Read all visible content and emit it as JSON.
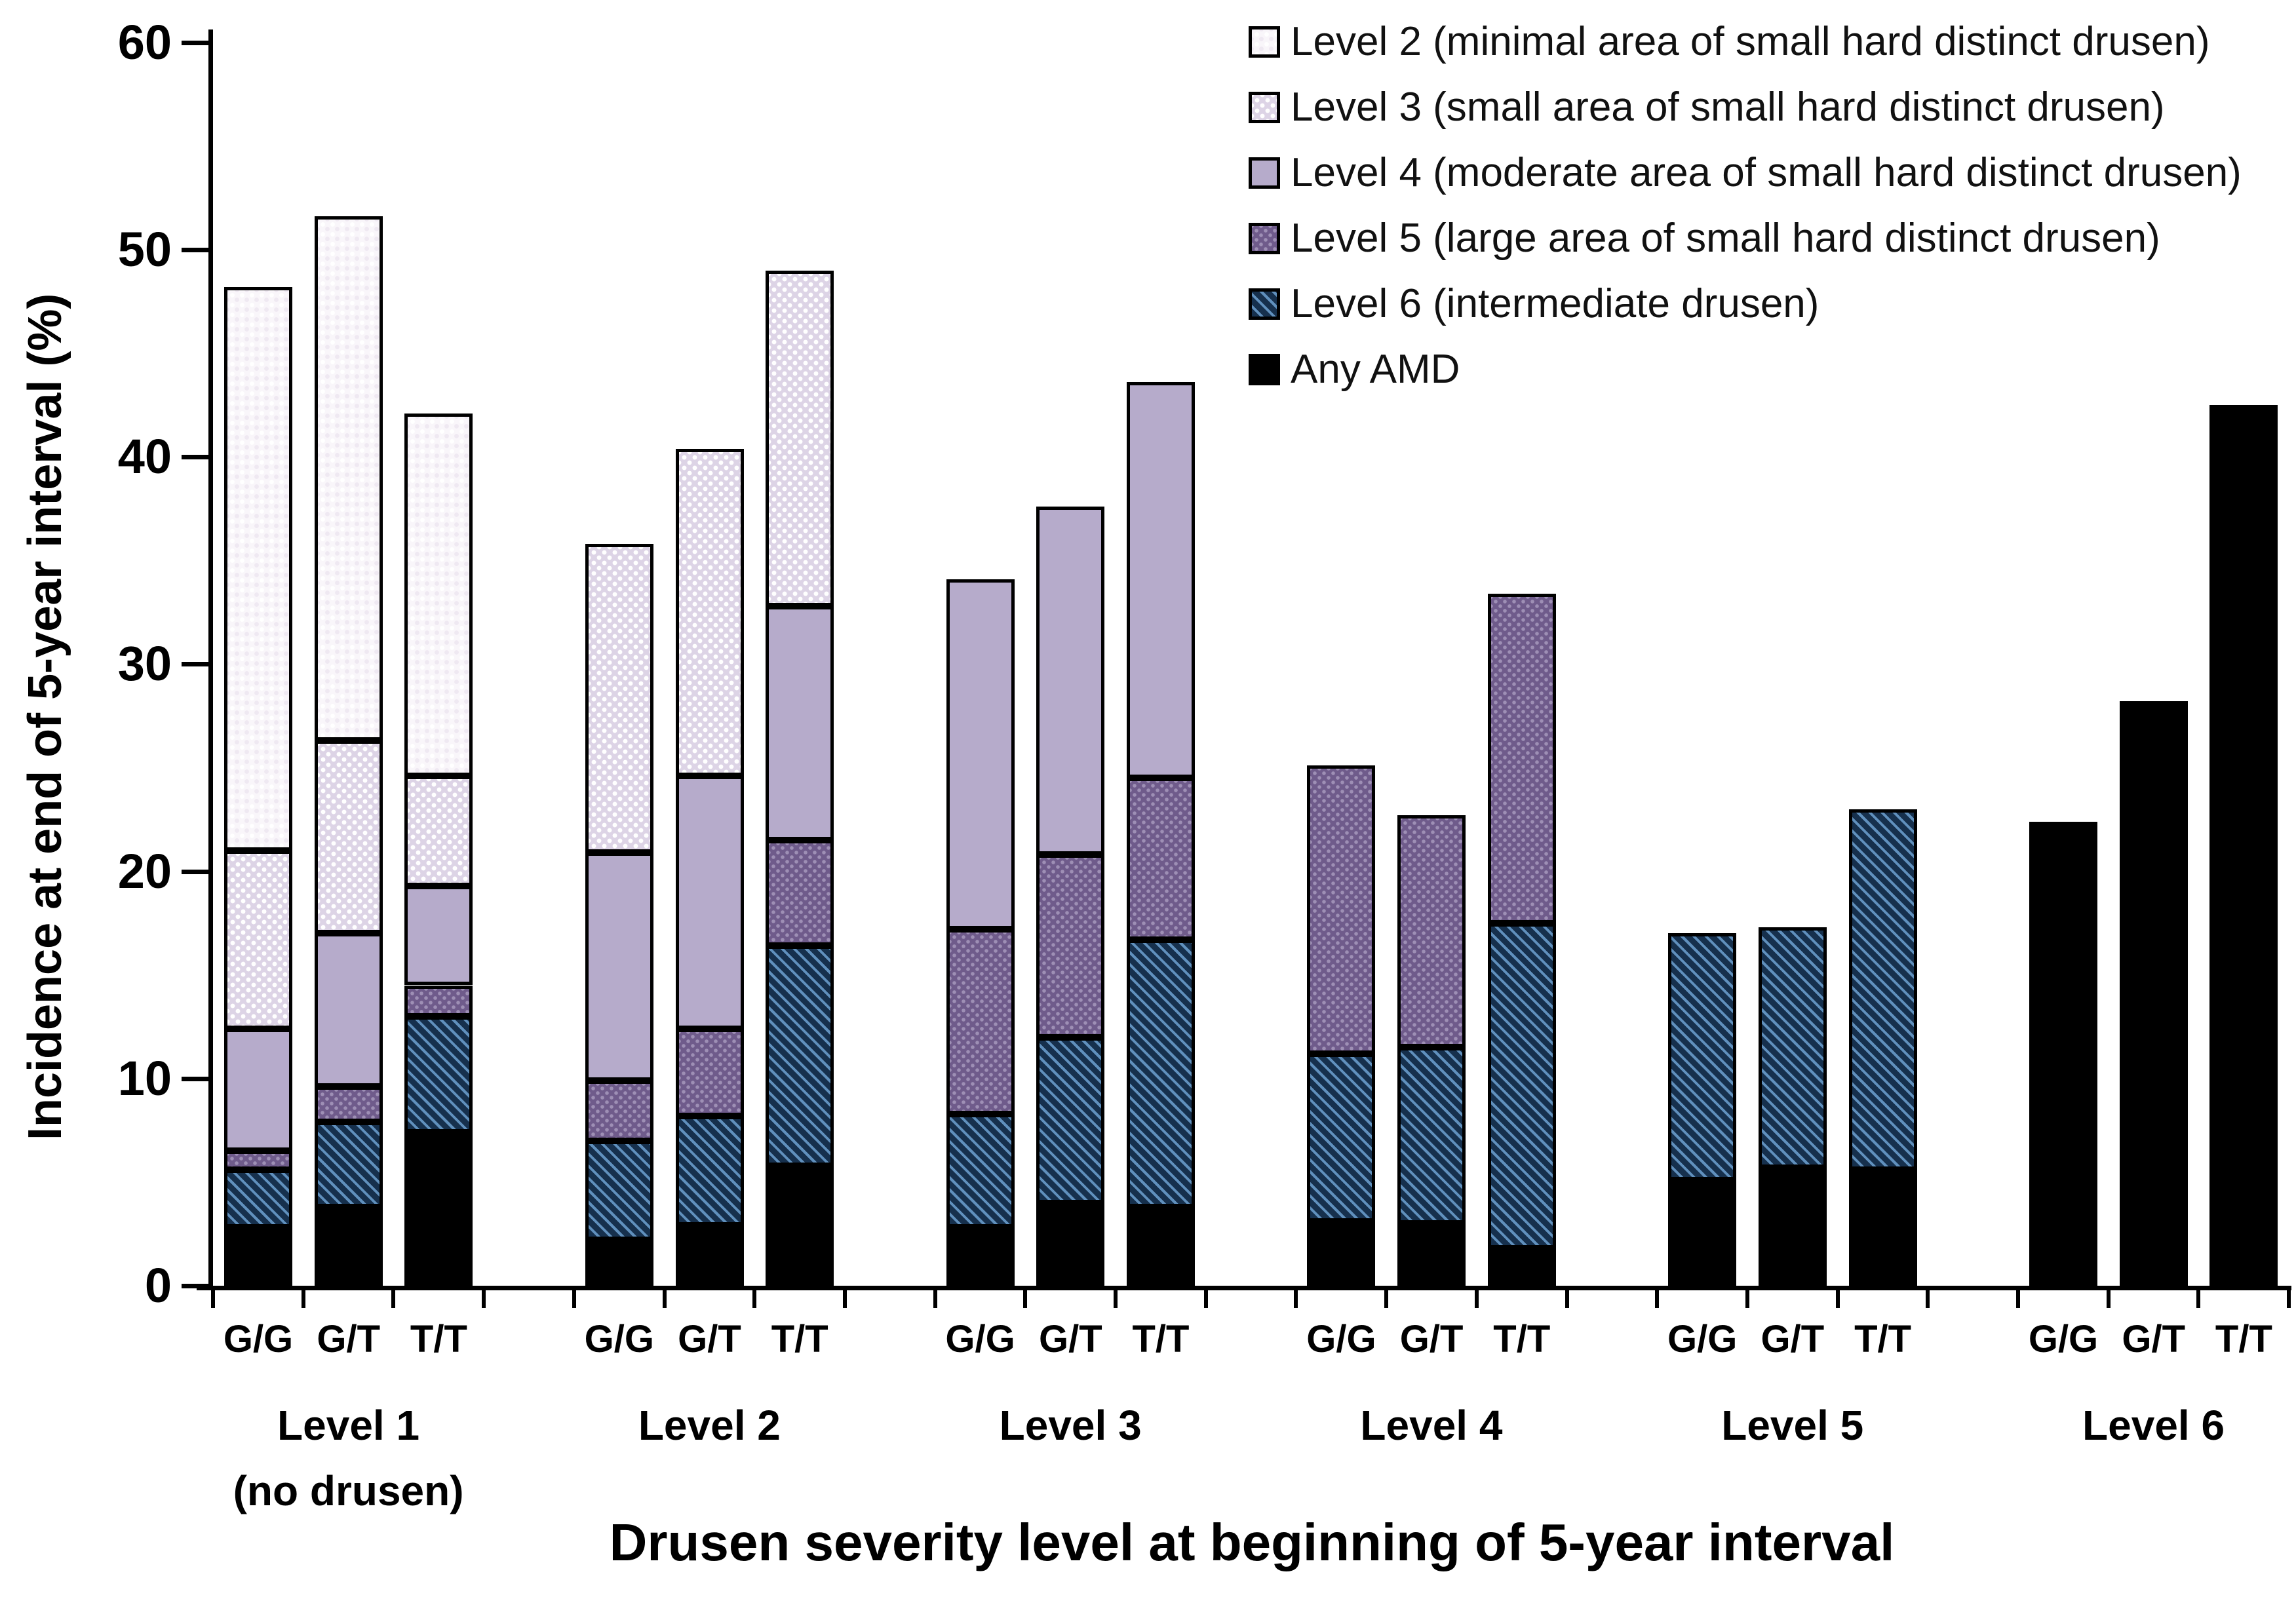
{
  "figure_title": "",
  "y_axis": {
    "title": "Incidence at end of 5-year interval (%)",
    "ticks": [
      0,
      10,
      20,
      30,
      40,
      50,
      60
    ],
    "min": 0,
    "max": 60
  },
  "x_axis": {
    "title": "Drusen severity level at beginning of 5-year interval",
    "group_labels": [
      "Level 1",
      "Level 2",
      "Level 3",
      "Level 4",
      "Level 5",
      "Level 6"
    ],
    "group_sublabels": [
      "(no drusen)",
      "",
      "",
      "",
      "",
      ""
    ],
    "genotype_labels": [
      "G/G",
      "G/T",
      "T/T"
    ]
  },
  "legend": {
    "items": [
      {
        "key": "l2",
        "label": "Level 2 (minimal area of small hard distinct drusen)"
      },
      {
        "key": "l3",
        "label": "Level 3 (small area of small hard distinct drusen)"
      },
      {
        "key": "l4",
        "label": "Level 4 (moderate area of small hard distinct drusen)"
      },
      {
        "key": "l5",
        "label": "Level 5 (large area of small hard distinct drusen)"
      },
      {
        "key": "l6",
        "label": "Level 6 (intermediate drusen)"
      },
      {
        "key": "amd",
        "label": "Any AMD"
      }
    ]
  },
  "colors": {
    "black": "#000000",
    "level6_base": "#16304d",
    "level6_stripe": "#6090bd",
    "level5_base": "#6f5b8b",
    "level5_dot": "#9e8fb5",
    "level4": "#b6abcb",
    "level3_base": "#ddd4e6",
    "level3_dot": "#ffffff",
    "level2_base": "#f9f6fa"
  },
  "chart_data": {
    "type": "bar",
    "stacked": true,
    "grid": false,
    "legend_position": "top-right",
    "ylim": [
      0,
      60
    ],
    "ylabel": "Incidence at end of 5-year interval (%)",
    "xlabel": "Drusen severity level at beginning of 5-year interval",
    "categories": [
      "Level 1 (no drusen)",
      "Level 2",
      "Level 3",
      "Level 4",
      "Level 5",
      "Level 6"
    ],
    "genotypes": [
      "G/G",
      "G/T",
      "T/T"
    ],
    "series": [
      {
        "name": "Any AMD",
        "key": "amd",
        "values": [
          [
            2.8,
            3.8,
            7.4
          ],
          [
            2.2,
            2.9,
            5.8
          ],
          [
            2.8,
            4.0,
            3.8
          ],
          [
            3.1,
            3.0,
            1.8
          ],
          [
            5.1,
            5.7,
            5.6
          ],
          [
            22.4,
            28.2,
            42.5
          ]
        ]
      },
      {
        "name": "Level 6 (intermediate drusen)",
        "key": "l6",
        "values": [
          [
            2.8,
            4.1,
            5.6
          ],
          [
            4.8,
            5.3,
            10.6
          ],
          [
            5.5,
            8.0,
            12.9
          ],
          [
            8.1,
            8.5,
            15.7
          ],
          [
            11.9,
            11.6,
            17.4
          ],
          [
            0,
            0,
            0
          ]
        ]
      },
      {
        "name": "Level 5 (large area of small hard distinct drusen)",
        "key": "l5",
        "values": [
          [
            0.9,
            1.7,
            1.5
          ],
          [
            2.9,
            4.2,
            5.1
          ],
          [
            8.9,
            8.8,
            7.8
          ],
          [
            13.9,
            11.2,
            15.9
          ],
          [
            0,
            0,
            0
          ],
          [
            0,
            0,
            0
          ]
        ]
      },
      {
        "name": "Level 4 (moderate area of small hard distinct drusen)",
        "key": "l4",
        "values": [
          [
            5.9,
            7.4,
            4.8
          ],
          [
            11.0,
            12.2,
            11.3
          ],
          [
            16.9,
            16.8,
            19.1
          ],
          [
            0,
            0,
            0
          ],
          [
            0,
            0,
            0
          ],
          [
            0,
            0,
            0
          ]
        ]
      },
      {
        "name": "Level 3 (small area of small hard distinct drusen)",
        "key": "l3",
        "values": [
          [
            8.6,
            9.3,
            5.3
          ],
          [
            14.9,
            15.8,
            16.2
          ],
          [
            0,
            0,
            0
          ],
          [
            0,
            0,
            0
          ],
          [
            0,
            0,
            0
          ],
          [
            0,
            0,
            0
          ]
        ]
      },
      {
        "name": "Level 2 (minimal area of small hard distinct drusen)",
        "key": "l2",
        "values": [
          [
            27.2,
            25.3,
            17.5
          ],
          [
            0,
            0,
            0
          ],
          [
            0,
            0,
            0
          ],
          [
            0,
            0,
            0
          ],
          [
            0,
            0,
            0
          ],
          [
            0,
            0,
            0
          ]
        ]
      }
    ],
    "stack_totals": [
      [
        48.2,
        51.6,
        42.1
      ],
      [
        35.8,
        40.4,
        49.0
      ],
      [
        34.1,
        37.6,
        43.6
      ],
      [
        25.1,
        22.7,
        33.4
      ],
      [
        17.0,
        17.3,
        23.0
      ],
      [
        22.4,
        28.2,
        42.5
      ]
    ]
  }
}
